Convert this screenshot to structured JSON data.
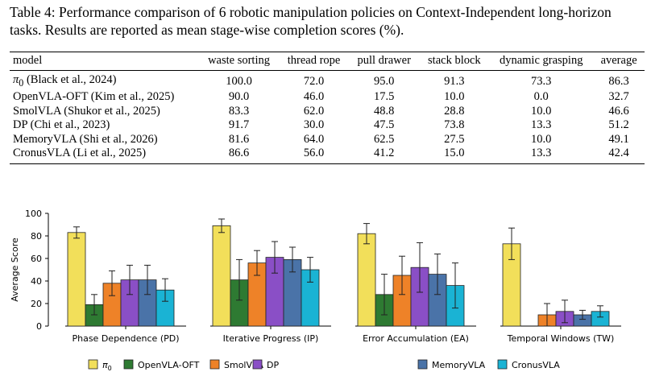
{
  "caption": {
    "label": "Table 4:",
    "text": "Performance comparison of 6 robotic manipulation policies on Context-Independent long-horizon tasks. Results are reported as mean stage-wise completion scores (%)."
  },
  "table": {
    "headers": [
      "model",
      "waste sorting",
      "thread rope",
      "pull drawer",
      "stack block",
      "dynamic grasping",
      "average"
    ],
    "rows": [
      {
        "model_symbol": "π",
        "model_sub": "0",
        "model_ref": " (Black et al., 2024)",
        "values": [
          "100.0",
          "72.0",
          "95.0",
          "91.3",
          "73.3",
          "86.3"
        ]
      },
      {
        "model": "OpenVLA-OFT (Kim et al., 2025)",
        "values": [
          "90.0",
          "46.0",
          "17.5",
          "10.0",
          "0.0",
          "32.7"
        ]
      },
      {
        "model": "SmolVLA (Shukor et al., 2025)",
        "values": [
          "83.3",
          "62.0",
          "48.8",
          "28.8",
          "10.0",
          "46.6"
        ]
      },
      {
        "model": "DP (Chi et al., 2023)",
        "values": [
          "91.7",
          "30.0",
          "47.5",
          "73.8",
          "13.3",
          "51.2"
        ]
      },
      {
        "model": "MemoryVLA (Shi et al., 2026)",
        "values": [
          "81.6",
          "64.0",
          "62.5",
          "27.5",
          "10.0",
          "49.1"
        ]
      },
      {
        "model": "CronusVLA (Li et al., 2025)",
        "values": [
          "86.6",
          "56.0",
          "41.2",
          "15.0",
          "13.3",
          "42.4"
        ]
      }
    ]
  },
  "chart_data": {
    "type": "bar",
    "ylabel": "Average Score",
    "ylim": [
      0,
      100
    ],
    "yticks": [
      0,
      20,
      40,
      60,
      80,
      100
    ],
    "grid": false,
    "legend_position": "bottom",
    "colors": [
      "#f2df5a",
      "#2e7a32",
      "#ee8228",
      "#8a4fc6",
      "#4a73a8",
      "#1ab3d4"
    ],
    "categories": [
      "Phase Dependence (PD)",
      "Iterative Progress (IP)",
      "Error Accumulation (EA)",
      "Temporal Windows (TW)"
    ],
    "series": [
      {
        "name": "π0",
        "name_main": "π",
        "name_sub": "0",
        "values": [
          83,
          89,
          82,
          73
        ],
        "errors": [
          5,
          6,
          9,
          14
        ]
      },
      {
        "name": "OpenVLA-OFT",
        "values": [
          19,
          41,
          28,
          0
        ],
        "errors": [
          9,
          18,
          18,
          0
        ]
      },
      {
        "name": "SmolVLA",
        "values": [
          38,
          56,
          45,
          10
        ],
        "errors": [
          11,
          11,
          17,
          10
        ]
      },
      {
        "name": "DP",
        "values": [
          41,
          61,
          52,
          13
        ],
        "errors": [
          13,
          14,
          22,
          10
        ]
      },
      {
        "name": "MemoryVLA",
        "values": [
          41,
          59,
          46,
          10
        ],
        "errors": [
          13,
          11,
          18,
          4
        ]
      },
      {
        "name": "CronusVLA",
        "values": [
          32,
          50,
          36,
          13
        ],
        "errors": [
          10,
          11,
          20,
          5
        ]
      }
    ]
  }
}
